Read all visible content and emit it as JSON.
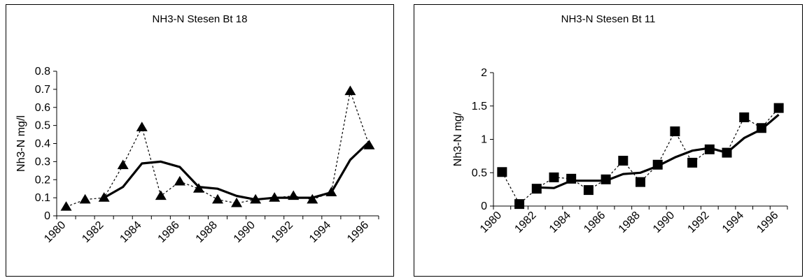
{
  "chart_data": [
    {
      "type": "line",
      "title": "NH3-N Stesen Bt 18",
      "xlabel": "",
      "ylabel": "Nh3-N mg/l",
      "ylim": [
        0,
        0.8
      ],
      "y_ticks": [
        "0",
        "0.1",
        "0.2",
        "0.3",
        "0.4",
        "0.5",
        "0.6",
        "0.7",
        "0.8"
      ],
      "x_tick_labels": [
        "1980",
        "1982",
        "1984",
        "1986",
        "1988",
        "1990",
        "1992",
        "1994",
        "1996"
      ],
      "x_range": [
        1980,
        1997
      ],
      "grid": false,
      "legend": "none",
      "marker": "triangle",
      "series": [
        {
          "style": "dotted-with-markers",
          "x": [
            1980.5,
            1981.5,
            1982.5,
            1983.5,
            1984.5,
            1985.5,
            1986.5,
            1987.5,
            1988.5,
            1989.5,
            1990.5,
            1991.5,
            1992.5,
            1993.5,
            1994.5,
            1995.5,
            1996.5
          ],
          "values": [
            0.05,
            0.09,
            0.1,
            0.28,
            0.49,
            0.11,
            0.19,
            0.15,
            0.09,
            0.07,
            0.09,
            0.1,
            0.11,
            0.09,
            0.13,
            0.69,
            0.39
          ]
        },
        {
          "style": "solid-trend",
          "x": [
            1982.5,
            1983.5,
            1984.5,
            1985.5,
            1986.5,
            1987.5,
            1988.5,
            1989.5,
            1990.5,
            1991.5,
            1992.5,
            1993.5,
            1994.5,
            1995.5,
            1996.5
          ],
          "values": [
            0.1,
            0.16,
            0.29,
            0.3,
            0.27,
            0.16,
            0.15,
            0.11,
            0.09,
            0.1,
            0.1,
            0.1,
            0.13,
            0.31,
            0.41
          ]
        }
      ]
    },
    {
      "type": "line",
      "title": "NH3-N Stesen Bt 11",
      "xlabel": "",
      "ylabel": "Nh3-N mg/",
      "ylim": [
        0,
        2
      ],
      "y_ticks": [
        "0",
        "0.5",
        "1",
        "1.5",
        "2"
      ],
      "x_tick_labels": [
        "1980",
        "1982",
        "1984",
        "1986",
        "1988",
        "1990",
        "1992",
        "1994",
        "1996"
      ],
      "x_range": [
        1980,
        1997
      ],
      "grid": false,
      "legend": "none",
      "marker": "square",
      "series": [
        {
          "style": "dotted-with-markers",
          "x": [
            1980.5,
            1981.5,
            1982.5,
            1983.5,
            1984.5,
            1985.5,
            1986.5,
            1987.5,
            1988.5,
            1989.5,
            1990.5,
            1991.5,
            1992.5,
            1993.5,
            1994.5,
            1995.5,
            1996.5
          ],
          "values": [
            0.51,
            0.03,
            0.26,
            0.43,
            0.41,
            0.24,
            0.4,
            0.68,
            0.36,
            0.62,
            1.12,
            0.65,
            0.85,
            0.8,
            1.33,
            1.17,
            1.47
          ]
        },
        {
          "style": "solid-trend",
          "x": [
            1982.5,
            1983.5,
            1984.5,
            1985.5,
            1986.5,
            1987.5,
            1988.5,
            1989.5,
            1990.5,
            1991.5,
            1992.5,
            1993.5,
            1994.5,
            1995.5,
            1996.5
          ],
          "values": [
            0.28,
            0.27,
            0.38,
            0.38,
            0.38,
            0.48,
            0.5,
            0.6,
            0.73,
            0.83,
            0.87,
            0.8,
            1.02,
            1.15,
            1.37
          ]
        }
      ]
    }
  ]
}
